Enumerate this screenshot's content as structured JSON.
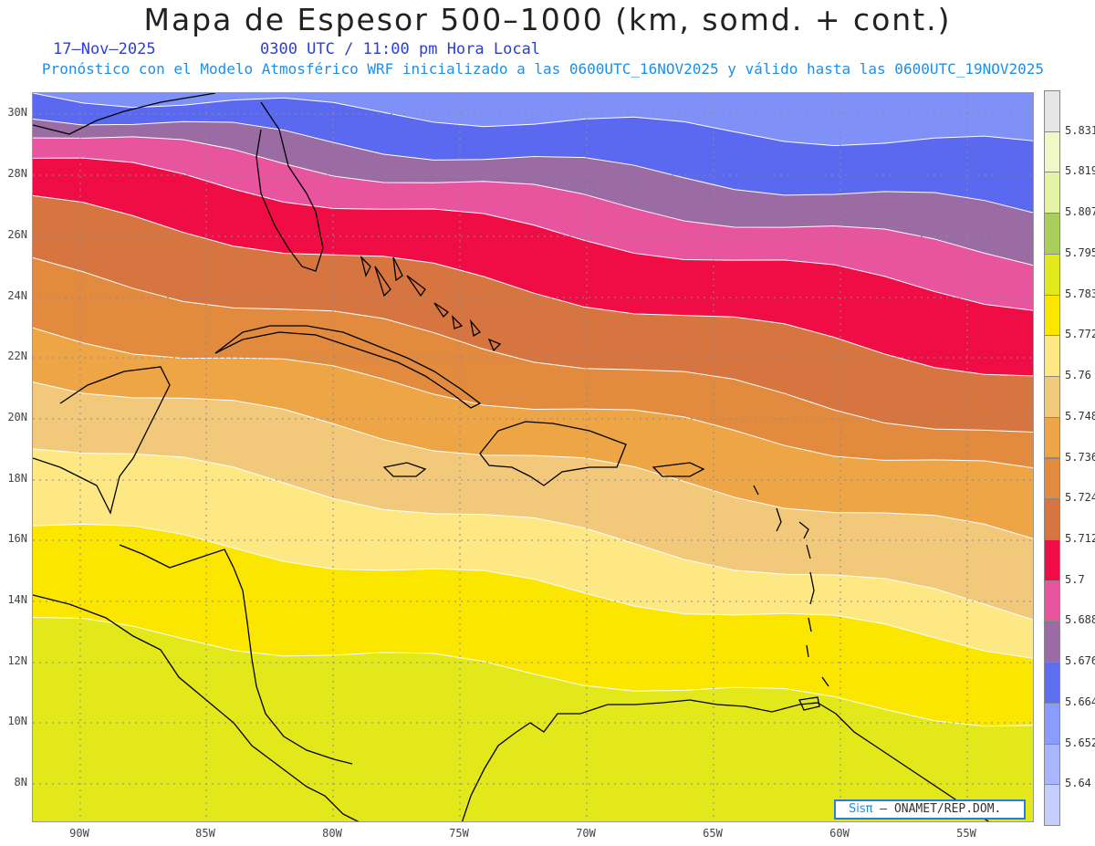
{
  "header": {
    "title": "Mapa de Espesor 500–1000 (km, somd. + cont.)",
    "date": "17–Nov–2025",
    "valid_time": "0300 UTC / 11:00 pm Hora Local",
    "subtitle": "Pronóstico con el Modelo Atmosférico WRF inicializado a las 0600UTC_16NOV2025 y válido hasta las  0600UTC_19NOV2025"
  },
  "axes": {
    "lat_labels": [
      "30N",
      "28N",
      "26N",
      "24N",
      "22N",
      "20N",
      "18N",
      "16N",
      "14N",
      "12N",
      "10N",
      "8N"
    ],
    "lon_labels": [
      "90W",
      "85W",
      "80W",
      "75W",
      "70W",
      "65W",
      "60W",
      "55W"
    ]
  },
  "colorbar": {
    "labels": [
      "5.831",
      "5.819",
      "5.807",
      "5.795",
      "5.783",
      "5.772",
      "5.76",
      "5.748",
      "5.736",
      "5.724",
      "5.712",
      "5.7",
      "5.688",
      "5.676",
      "5.664",
      "5.652",
      "5.64"
    ],
    "colors": [
      "#e6e6e6",
      "#f2f7c8",
      "#e3f4a4",
      "#a8cf5c",
      "#e2e819",
      "#fbe600",
      "#fde884",
      "#f2c97a",
      "#eda546",
      "#e28b3f",
      "#d77540",
      "#f00c44",
      "#e8549e",
      "#9b6ca4",
      "#5d6ff0",
      "#8a9cff",
      "#a9b6ff",
      "#c5cfff"
    ]
  },
  "map": {
    "band_colors": [
      "#7f90f7",
      "#5b68f0",
      "#9b6ca4",
      "#e8549e",
      "#f00c44",
      "#d77540",
      "#e28b3f",
      "#eda546",
      "#f2c97a",
      "#fde884",
      "#fbe600",
      "#e2e819"
    ],
    "line_color": "#ffffff",
    "coast_color": "#000000"
  },
  "credit": {
    "brand": "Sisπ",
    "text": "– ONAMET/REP.DOM."
  }
}
